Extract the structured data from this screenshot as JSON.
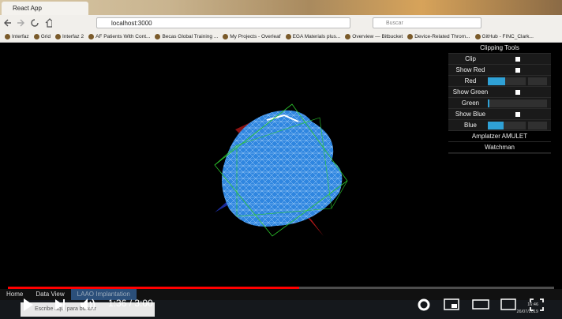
{
  "browser": {
    "tab_title": "React App",
    "url": "localhost:3000",
    "search_placeholder": "Buscar",
    "bookmarks": [
      "Interfaz",
      "Grid",
      "Interfaz 2",
      "AF Patients With Cont...",
      "Becas Global Training ...",
      "My Projects - Overleaf",
      "EGA Materials plus...",
      "Overview — Bitbucket",
      "Device-Related Throm...",
      "GitHub - FINC_Clark..."
    ]
  },
  "panel": {
    "title": "Clipping Tools",
    "clip": "Clip",
    "show_red": "Show Red",
    "red": "Red",
    "show_green": "Show Green",
    "green": "Green",
    "show_blue": "Show Blue",
    "blue": "Blue",
    "amulet": "Amplatzer AMULET",
    "watchman": "Watchman"
  },
  "app_nav": [
    "Home",
    "Data View",
    "LAAO Implantation"
  ],
  "video": {
    "time_label": "1:36 / 3:00",
    "elapsed_seconds": 96,
    "duration_seconds": 180
  },
  "taskbar": {
    "search_placeholder": "Escribe aquí para buscar",
    "time": "16:46",
    "date": "26/07/2019"
  }
}
